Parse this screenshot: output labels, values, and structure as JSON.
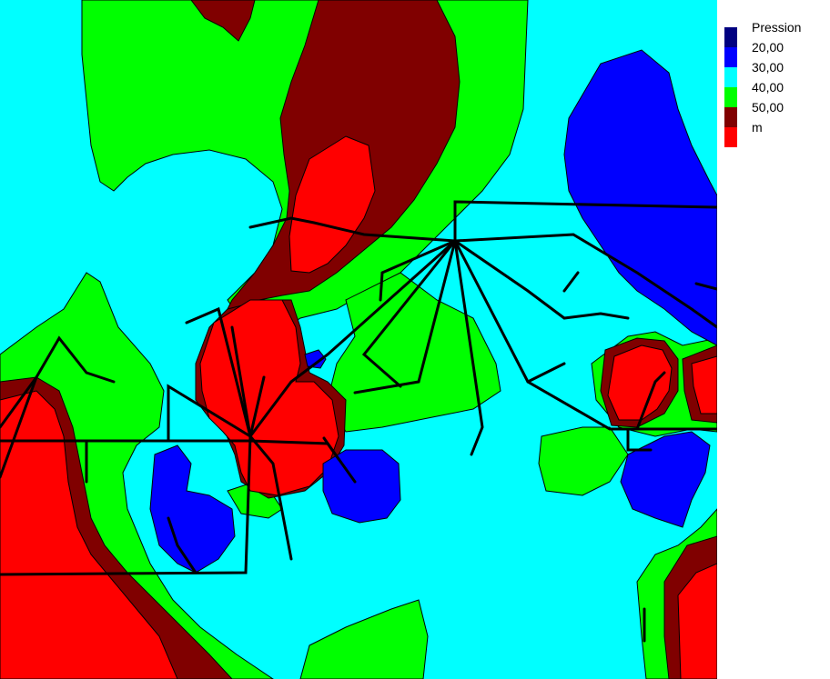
{
  "legend": {
    "title": "Pression",
    "unit": "m",
    "items": [
      {
        "label": "20,00",
        "color": "#0000FF"
      },
      {
        "label": "30,00",
        "color": "#00FFFF"
      },
      {
        "label": "40,00",
        "color": "#00FF00"
      },
      {
        "label": "50,00",
        "color": "#800000"
      },
      {
        "label": "m",
        "color": "#FF0000"
      }
    ],
    "top_color": "#000080"
  },
  "colors": {
    "background": "#00FFFF",
    "low": "#0000FF",
    "mid": "#00FF00",
    "high": "#800000",
    "max": "#FF0000",
    "pipes": "#000000"
  }
}
